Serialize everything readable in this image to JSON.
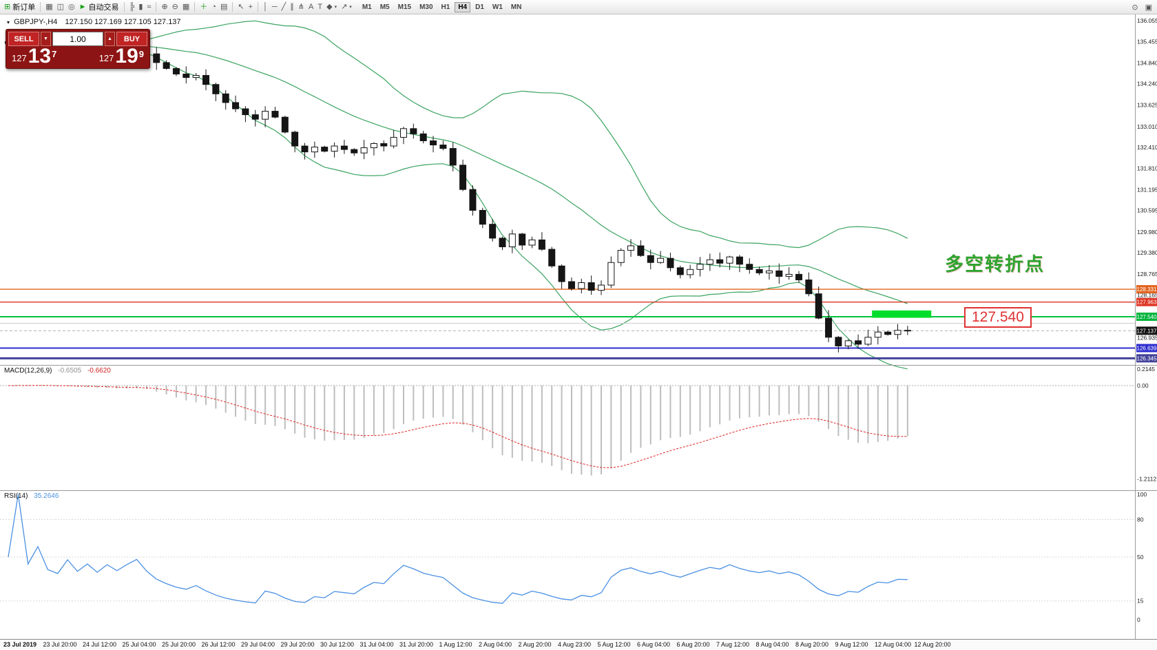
{
  "toolbar": {
    "groups": [
      {
        "items": [
          {
            "name": "new-order-button",
            "glyph": "⊞",
            "glyph_color": "#1f9e1f",
            "label": "新订单"
          }
        ]
      },
      {
        "items": [
          {
            "name": "new-chart-button",
            "glyph": "▦"
          },
          {
            "name": "profiles-button",
            "glyph": "◫"
          },
          {
            "name": "sound-button",
            "glyph": "◎"
          },
          {
            "name": "auto-trading-button",
            "glyph": "►",
            "glyph_color": "#17a017",
            "label": "自动交易"
          }
        ]
      },
      {
        "items": [
          {
            "name": "bar-chart-mode-button",
            "glyph": "╠"
          },
          {
            "name": "candlestick-mode-button",
            "glyph": "▮"
          },
          {
            "name": "line-chart-mode-button",
            "glyph": "≈"
          }
        ]
      },
      {
        "items": [
          {
            "name": "zoom-in-button",
            "glyph": "⊕"
          },
          {
            "name": "zoom-out-button",
            "glyph": "⊖"
          },
          {
            "name": "tile-windows-button",
            "glyph": "▦"
          }
        ]
      },
      {
        "items": [
          {
            "name": "indicators-button",
            "glyph": "＋",
            "glyph_color": "#1f9e1f"
          },
          {
            "name": "periods-button",
            "glyph": "◔"
          },
          {
            "name": "templates-button",
            "glyph": "▤"
          }
        ]
      },
      {
        "items": [
          {
            "name": "cursor-tool-button",
            "glyph": "↖"
          },
          {
            "name": "crosshair-tool-button",
            "glyph": "+"
          }
        ]
      },
      {
        "items": [
          {
            "name": "vertical-line-tool-button",
            "glyph": "│"
          },
          {
            "name": "horizontal-line-tool-button",
            "glyph": "─"
          },
          {
            "name": "trendline-tool-button",
            "glyph": "╱"
          },
          {
            "name": "channel-tool-button",
            "glyph": "∥"
          },
          {
            "name": "pitchfork-tool-button",
            "glyph": "⋔"
          },
          {
            "name": "text-tool-button",
            "glyph": "A"
          },
          {
            "name": "label-tool-button",
            "glyph": "T"
          },
          {
            "name": "shapes-tool-button",
            "glyph": "◆",
            "caret": true
          },
          {
            "name": "arrows-tool-button",
            "glyph": "↗",
            "caret": true
          }
        ]
      }
    ],
    "timeframes": [
      {
        "label": "M1"
      },
      {
        "label": "M5"
      },
      {
        "label": "M15"
      },
      {
        "label": "M30"
      },
      {
        "label": "H1"
      },
      {
        "label": "H4",
        "active": true
      },
      {
        "label": "D1"
      },
      {
        "label": "W1"
      },
      {
        "label": "MN"
      }
    ],
    "right_items": [
      {
        "name": "magnifier-button",
        "glyph": "⊙"
      },
      {
        "name": "terminal-button",
        "glyph": "▣"
      }
    ]
  },
  "chart": {
    "collapse_glyph": "▾",
    "symbol": "GBPJPY-,H4",
    "ohlc_text": "127.150 127.169 127.105 127.137",
    "annotation": "多空转折点",
    "price_callout": "127.540",
    "trade_panel": {
      "sell_label": "SELL",
      "buy_label": "BUY",
      "volume": "1.00",
      "down_glyph": "▼",
      "up_glyph": "▲",
      "sell_price_int": "127",
      "sell_price_big": "13",
      "sell_price_sup": "7",
      "buy_price_int": "127",
      "buy_price_big": "19",
      "buy_price_sup": "9"
    }
  },
  "macd": {
    "label": "MACD(12,26,9)",
    "value_main": "-0.6505",
    "value_signal": "-0.6620",
    "axis_labels": [
      "0.2145",
      "0.00",
      "-1.2112"
    ]
  },
  "rsi": {
    "label": "RSI(14)",
    "value": "35.2646",
    "axis_labels": [
      "100",
      "80",
      "50",
      "15",
      "0"
    ],
    "levels": [
      80,
      50,
      15
    ]
  },
  "chart_data": {
    "type": "candlestick",
    "symbol": "GBPJPY-",
    "timeframe": "H4",
    "current_ohlc": {
      "open": "127.150",
      "high": "127.169",
      "low": "127.105",
      "close": "127.137"
    },
    "closes": [
      135.4,
      135.48,
      135.38,
      135.44,
      135.33,
      135.3,
      135.38,
      135.27,
      135.33,
      135.22,
      135.3,
      135.2,
      135.28,
      135.36,
      135.1,
      134.85,
      134.68,
      134.52,
      134.42,
      134.48,
      134.22,
      133.95,
      133.7,
      133.52,
      133.35,
      133.22,
      133.45,
      133.28,
      132.85,
      132.45,
      132.28,
      132.42,
      132.3,
      132.45,
      132.35,
      132.25,
      132.4,
      132.52,
      132.45,
      132.7,
      132.95,
      132.8,
      132.6,
      132.48,
      132.38,
      131.9,
      131.2,
      130.6,
      130.2,
      129.8,
      129.55,
      129.92,
      129.6,
      129.75,
      129.48,
      129.0,
      128.55,
      128.35,
      128.52,
      128.3,
      128.45,
      129.1,
      129.45,
      129.58,
      129.3,
      129.1,
      129.22,
      128.95,
      128.75,
      128.9,
      129.05,
      129.18,
      129.08,
      129.26,
      129.05,
      128.9,
      128.8,
      128.86,
      128.7,
      128.76,
      128.6,
      128.2,
      127.5,
      126.95,
      126.7,
      126.85,
      126.75,
      126.95,
      127.1,
      127.03,
      127.15,
      127.137
    ],
    "x_labels": [
      "23 Jul 2019",
      "23 Jul 20:00",
      "24 Jul 12:00",
      "25 Jul 04:00",
      "25 Jul 20:00",
      "26 Jul 12:00",
      "29 Jul 04:00",
      "29 Jul 20:00",
      "30 Jul 12:00",
      "31 Jul 04:00",
      "31 Jul 20:00",
      "1 Aug 12:00",
      "2 Aug 04:00",
      "2 Aug 20:00",
      "4 Aug 23:00",
      "5 Aug 12:00",
      "6 Aug 04:00",
      "6 Aug 20:00",
      "7 Aug 12:00",
      "8 Aug 04:00",
      "8 Aug 20:00",
      "9 Aug 12:00",
      "12 Aug 04:00",
      "12 Aug 20:00"
    ],
    "y_axis_labels": [
      "136.055",
      "135.455",
      "134.840",
      "134.240",
      "133.625",
      "133.010",
      "132.410",
      "131.810",
      "131.195",
      "130.595",
      "129.980",
      "129.380",
      "128.765",
      "128.165",
      "126.935"
    ],
    "price_badges": [
      {
        "value": "128.331",
        "color": "#e2641e"
      },
      {
        "value": "127.963",
        "color": "#dd3322"
      },
      {
        "value": "127.540",
        "color": "#00b43c"
      },
      {
        "value": "127.137",
        "color": "#111111"
      },
      {
        "value": "126.639",
        "color": "#2d2dd0"
      },
      {
        "value": "126.345",
        "color": "#42429a"
      }
    ],
    "hlines": [
      {
        "price": 128.331,
        "color": "#e2641e",
        "w": 1.4
      },
      {
        "price": 127.963,
        "color": "#dd3322",
        "w": 1.4
      },
      {
        "price": 127.54,
        "color": "#00c23c",
        "w": 2
      },
      {
        "price": 127.35,
        "color": "#cccccc",
        "w": 1
      },
      {
        "price": 127.137,
        "color": "#b0b0b0",
        "w": 1,
        "dash": "4,3"
      },
      {
        "price": 126.639,
        "color": "#2d2dd0",
        "w": 2
      },
      {
        "price": 126.345,
        "color": "#42429a",
        "w": 3
      }
    ],
    "bollinger": {
      "period": 20,
      "deviation": 2,
      "color": "#3aa35f"
    },
    "highlight_rect": {
      "from_bar": 87.4,
      "to_bar": 93.4,
      "price_top": 127.72,
      "price_bottom": 127.51,
      "color": "#00dd2a"
    }
  }
}
